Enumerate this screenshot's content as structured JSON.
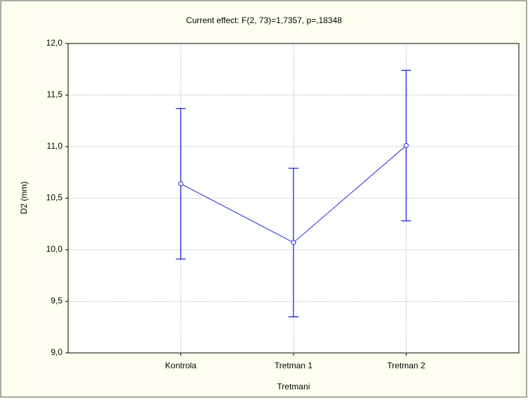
{
  "chart_data": {
    "type": "errorbar-line",
    "title": "Current effect: F(2, 73)=1,7357, p=,18348",
    "xlabel": "Tretmani",
    "ylabel": "D2 (mm)",
    "categories": [
      "Kontrola",
      "Tretman 1",
      "Tretman 2"
    ],
    "series": [
      {
        "color": "#2020e0",
        "values": [
          10.64,
          10.07,
          11.01
        ],
        "errors": [
          0.73,
          0.72,
          0.73
        ]
      }
    ],
    "ylim": [
      9,
      12
    ],
    "yticks": [
      {
        "value": 9,
        "label": "9,0"
      },
      {
        "value": 9.5,
        "label": "9,5"
      },
      {
        "value": 10,
        "label": "10,0"
      },
      {
        "value": 10.5,
        "label": "10,5"
      },
      {
        "value": 11,
        "label": "11,0"
      },
      {
        "value": 11.5,
        "label": "11,5"
      },
      {
        "value": 12,
        "label": "12,0"
      }
    ],
    "grid": true
  }
}
